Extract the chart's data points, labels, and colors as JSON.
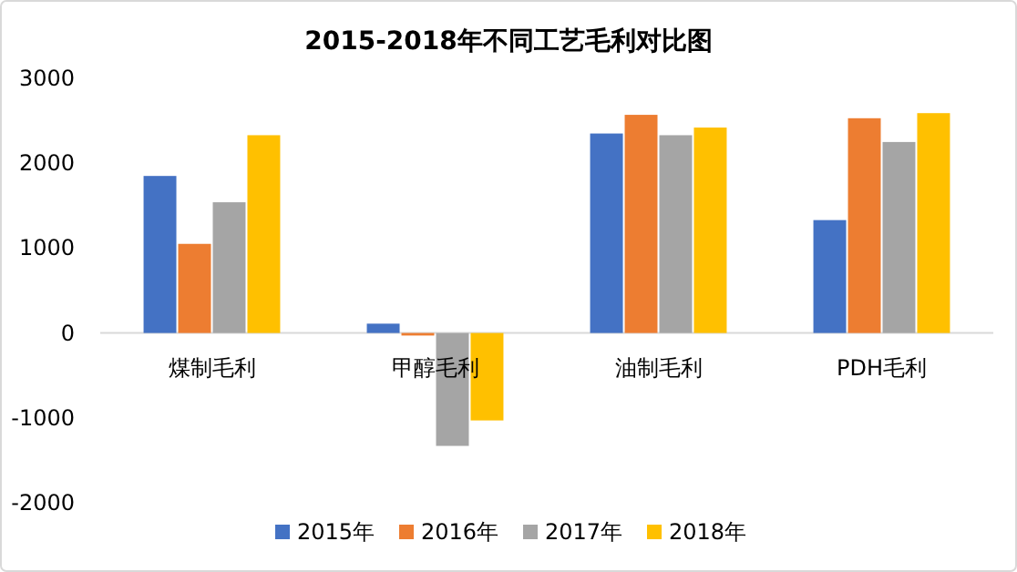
{
  "chart_data": {
    "type": "bar",
    "title": "2015-2018年不同工艺毛利对比图",
    "categories": [
      "煤制毛利",
      "甲醇毛利",
      "油制毛利",
      "PDH毛利"
    ],
    "series": [
      {
        "name": "2015年",
        "color": "#4472c4",
        "values": [
          1850,
          110,
          2350,
          1330
        ]
      },
      {
        "name": "2016年",
        "color": "#ed7d31",
        "values": [
          1050,
          -30,
          2570,
          2530
        ]
      },
      {
        "name": "2017年",
        "color": "#a5a5a5",
        "values": [
          1540,
          -1330,
          2330,
          2250
        ]
      },
      {
        "name": "2018年",
        "color": "#ffc000",
        "values": [
          2330,
          -1030,
          2420,
          2590
        ]
      }
    ],
    "ylim": [
      -2000,
      3000
    ],
    "yticks": [
      -2000,
      -1000,
      0,
      1000,
      2000,
      3000
    ],
    "grid": false,
    "legend": "bottom"
  }
}
